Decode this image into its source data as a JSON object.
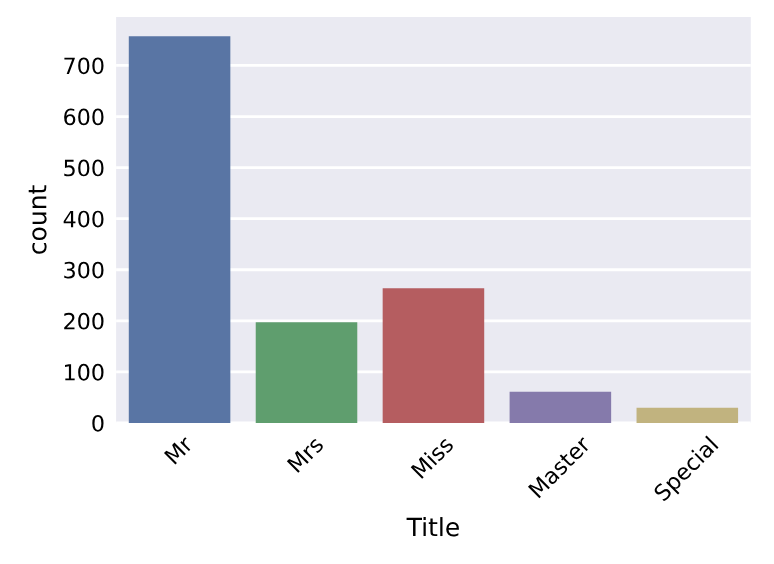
{
  "chart_data": {
    "type": "bar",
    "xlabel": "Title",
    "ylabel": "count",
    "categories": [
      "Mr",
      "Mrs",
      "Miss",
      "Master",
      "Special"
    ],
    "values": [
      757,
      197,
      264,
      61,
      30
    ],
    "colors": [
      "#5975a4",
      "#5f9e6e",
      "#b55d60",
      "#857aab",
      "#c1b37f"
    ],
    "ylim": [
      0,
      795
    ],
    "yticks": [
      0,
      100,
      200,
      300,
      400,
      500,
      600,
      700
    ],
    "grid": "y"
  }
}
